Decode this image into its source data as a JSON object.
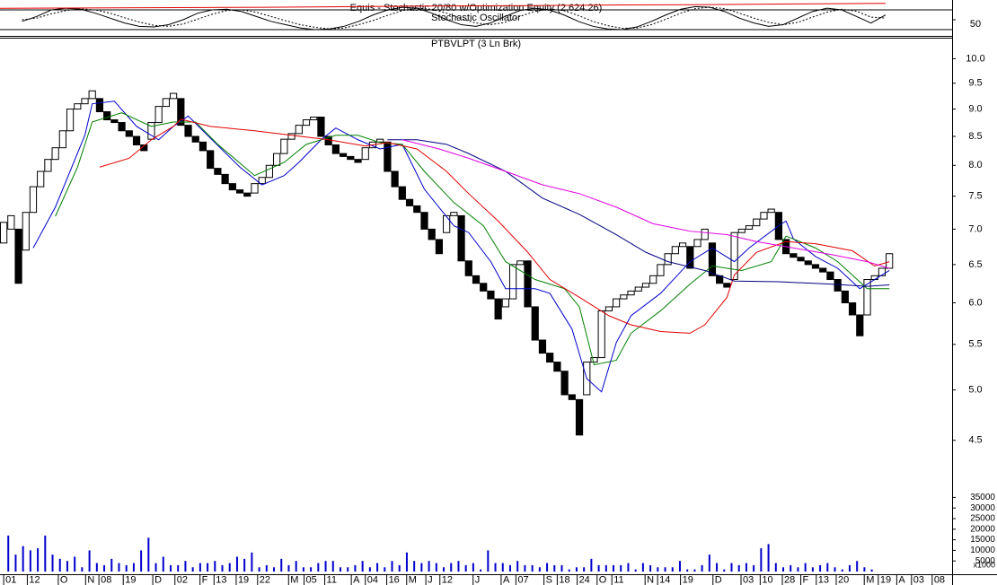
{
  "chart_data": {
    "type": "line_break",
    "top_title": "Equis - Stochastic 20/80 w/Optimization Equity (2,624.26)",
    "top_subtitle": "Stochastic Oscillator",
    "title": "PTBVLPT (3 Ln Brk)",
    "xlim": [
      0,
      129
    ],
    "x_labels": [
      {
        "label": "01",
        "at": 0.5
      },
      {
        "label": "12",
        "at": 3.7
      },
      {
        "label": "O",
        "at": 7.9
      },
      {
        "label": "N",
        "at": 11.6
      },
      {
        "label": "08",
        "at": 13.4
      },
      {
        "label": "19",
        "at": 16.7
      },
      {
        "label": "D",
        "at": 20.7
      },
      {
        "label": "02",
        "at": 23.7
      },
      {
        "label": "F",
        "at": 27.1
      },
      {
        "label": "13",
        "at": 29
      },
      {
        "label": "19",
        "at": 32
      },
      {
        "label": "22",
        "at": 34.9
      },
      {
        "label": "M",
        "at": 39.1
      },
      {
        "label": "05",
        "at": 41.2
      },
      {
        "label": "11",
        "at": 44
      },
      {
        "label": "A",
        "at": 47.6
      },
      {
        "label": "04",
        "at": 49.5
      },
      {
        "label": "16",
        "at": 52.4
      },
      {
        "label": "M",
        "at": 55.1
      },
      {
        "label": "J",
        "at": 57.7
      },
      {
        "label": "12",
        "at": 59.6
      },
      {
        "label": "J",
        "at": 64.1
      },
      {
        "label": "A",
        "at": 67.9
      },
      {
        "label": "07",
        "at": 69.9
      },
      {
        "label": "S",
        "at": 73.7
      },
      {
        "label": "18",
        "at": 75.5
      },
      {
        "label": "24",
        "at": 78.2
      },
      {
        "label": "O",
        "at": 80.9
      },
      {
        "label": "11",
        "at": 82.9
      },
      {
        "label": "N",
        "at": 87.4
      },
      {
        "label": "14",
        "at": 89.1
      },
      {
        "label": "19",
        "at": 92.2
      },
      {
        "label": "D",
        "at": 96.6
      },
      {
        "label": "03",
        "at": 100.4
      },
      {
        "label": "10",
        "at": 103
      },
      {
        "label": "28",
        "at": 106
      },
      {
        "label": "F",
        "at": 108.5
      },
      {
        "label": "13",
        "at": 110.6
      },
      {
        "label": "20",
        "at": 113.3
      },
      {
        "label": "M",
        "at": 117.1
      },
      {
        "label": "19",
        "at": 119
      },
      {
        "label": "A",
        "at": 121.5
      },
      {
        "label": "03",
        "at": 123.5
      },
      {
        "label": "08",
        "at": 126.3
      }
    ],
    "log_scale": true,
    "ylim": [
      3.4,
      10.45
    ],
    "yticks": [
      {
        "value": 10,
        "label": "10.0"
      },
      9.5,
      {
        "value": 9,
        "label": "9.0"
      },
      8.5,
      {
        "value": 8,
        "label": "8.0"
      },
      7.5,
      {
        "value": 7,
        "label": "7.0"
      },
      6.5,
      {
        "value": 6,
        "label": "6.0"
      },
      5.5,
      {
        "value": 5,
        "label": "5.0"
      },
      4.5
    ],
    "up_color": "#ffffff",
    "down_color": "#000000",
    "bricks": {
      "open": [
        6.8,
        7.0,
        7.0,
        6.7,
        7.25,
        7.65,
        7.9,
        8.1,
        8.3,
        8.6,
        9.0,
        9.1,
        9.2,
        9.2,
        8.95,
        8.8,
        8.75,
        8.6,
        8.5,
        8.35,
        8.45,
        8.75,
        9.05,
        9.2,
        9.2,
        8.7,
        8.5,
        8.4,
        8.25,
        7.95,
        7.85,
        7.7,
        7.6,
        7.55,
        7.55,
        7.7,
        7.8,
        8.0,
        8.2,
        8.45,
        8.55,
        8.7,
        8.8,
        8.85,
        8.5,
        8.35,
        8.2,
        8.15,
        8.1,
        8.1,
        8.3,
        8.4,
        8.4,
        7.9,
        7.65,
        7.45,
        7.35,
        7.25,
        7.0,
        6.85,
        6.95,
        7.2,
        7.2,
        6.55,
        6.35,
        6.25,
        6.15,
        6.05,
        5.95,
        6.05,
        6.5,
        6.55,
        5.95,
        5.55,
        5.4,
        5.3,
        5.2,
        4.95,
        4.9,
        4.95,
        5.3,
        5.35,
        5.9,
        5.95,
        6.05,
        6.1,
        6.15,
        6.2,
        6.25,
        6.35,
        6.5,
        6.65,
        6.75,
        6.75,
        6.75,
        6.85,
        6.8,
        6.35,
        6.25,
        6.3,
        6.95,
        7.0,
        7.05,
        7.15,
        7.25,
        7.25,
        6.85,
        6.65,
        6.6,
        6.55,
        6.5,
        6.45,
        6.4,
        6.3,
        6.15,
        6.0,
        5.85,
        5.85,
        6.3,
        6.35,
        6.45
      ],
      "close": [
        7.1,
        7.2,
        6.25,
        7.25,
        7.65,
        7.9,
        8.1,
        8.3,
        8.6,
        9.0,
        9.1,
        9.2,
        9.35,
        8.95,
        8.8,
        8.75,
        8.6,
        8.5,
        8.35,
        8.25,
        8.75,
        9.05,
        9.2,
        9.3,
        8.7,
        8.5,
        8.4,
        8.25,
        7.95,
        7.85,
        7.7,
        7.6,
        7.55,
        7.5,
        7.7,
        7.8,
        8.0,
        8.2,
        8.45,
        8.55,
        8.7,
        8.8,
        8.85,
        8.5,
        8.35,
        8.2,
        8.15,
        8.1,
        8.05,
        8.3,
        8.4,
        8.45,
        7.9,
        7.65,
        7.45,
        7.35,
        7.25,
        7.0,
        6.85,
        6.65,
        7.2,
        7.25,
        6.55,
        6.35,
        6.25,
        6.15,
        6.05,
        5.8,
        6.05,
        6.5,
        6.55,
        5.95,
        5.55,
        5.4,
        5.3,
        5.2,
        4.95,
        4.9,
        4.55,
        5.3,
        5.35,
        5.9,
        5.95,
        6.05,
        6.1,
        6.15,
        6.2,
        6.25,
        6.35,
        6.5,
        6.65,
        6.75,
        6.8,
        6.45,
        6.85,
        7.0,
        6.35,
        6.25,
        6.2,
        6.95,
        7.0,
        7.05,
        7.15,
        7.25,
        7.3,
        6.85,
        6.65,
        6.6,
        6.55,
        6.5,
        6.45,
        6.4,
        6.3,
        6.15,
        6.0,
        5.85,
        5.6,
        6.3,
        6.35,
        6.45,
        6.65
      ]
    },
    "lines": [
      {
        "color": "#0000cc",
        "x": [
          4,
          7,
          11,
          12,
          15,
          18,
          21,
          23,
          25,
          27,
          32,
          35,
          38,
          40,
          43,
          45,
          48,
          51,
          54,
          57,
          61,
          63,
          66,
          68,
          72,
          74,
          77,
          79,
          81,
          83,
          85,
          89,
          93,
          96,
          99,
          101,
          105,
          106,
          107,
          110,
          113,
          116,
          118,
          120
        ],
        "values": [
          6.73,
          7.33,
          8.52,
          9.1,
          9.15,
          8.68,
          8.44,
          8.68,
          8.87,
          8.6,
          7.97,
          7.68,
          7.83,
          8.05,
          8.44,
          8.65,
          8.44,
          8.28,
          8.36,
          7.61,
          7.05,
          6.95,
          6.54,
          6.18,
          6.18,
          6.12,
          5.68,
          5.12,
          4.98,
          5.52,
          5.84,
          6.12,
          6.54,
          6.73,
          6.54,
          6.73,
          7.05,
          7.12,
          6.86,
          6.61,
          6.45,
          6.18,
          6.3,
          6.42
        ]
      },
      {
        "color": "#008000",
        "x": [
          7,
          10,
          12,
          16,
          20,
          23,
          26,
          29,
          34,
          38,
          41,
          45,
          48,
          51,
          54,
          57,
          61,
          65,
          68,
          72,
          76,
          78,
          80,
          83,
          85,
          89,
          93,
          96,
          100,
          104,
          106,
          110,
          113,
          117,
          120
        ],
        "values": [
          7.19,
          7.97,
          8.76,
          8.93,
          8.68,
          8.76,
          8.76,
          8.36,
          7.83,
          8.05,
          8.36,
          8.52,
          8.52,
          8.39,
          8.36,
          7.9,
          7.4,
          7.05,
          6.54,
          6.3,
          6.18,
          5.95,
          5.27,
          5.32,
          5.63,
          5.9,
          6.24,
          6.48,
          6.42,
          6.54,
          6.9,
          6.73,
          6.54,
          6.18,
          6.18
        ]
      },
      {
        "color": "#e00000",
        "x": [
          13,
          17,
          20,
          23,
          24,
          28,
          34,
          39,
          44,
          49,
          52,
          56,
          60,
          63,
          67,
          71,
          74,
          78,
          82,
          85,
          89,
          93,
          95,
          98,
          99,
          102,
          106,
          110,
          115,
          118,
          120
        ],
        "values": [
          7.97,
          8.12,
          8.44,
          8.68,
          8.81,
          8.68,
          8.6,
          8.52,
          8.44,
          8.33,
          8.39,
          8.28,
          7.9,
          7.54,
          7.12,
          6.67,
          6.3,
          6.07,
          5.84,
          5.73,
          5.65,
          5.63,
          5.73,
          6.07,
          6.36,
          6.67,
          6.82,
          6.79,
          6.69,
          6.48,
          6.54
        ]
      },
      {
        "color": "#000080",
        "x": [
          52,
          56,
          60,
          63,
          68,
          73,
          78,
          83,
          87,
          90,
          95,
          99,
          105,
          112,
          117,
          120
        ],
        "values": [
          8.44,
          8.44,
          8.36,
          8.2,
          7.9,
          7.47,
          7.22,
          6.92,
          6.67,
          6.54,
          6.42,
          6.28,
          6.27,
          6.24,
          6.21,
          6.23
        ]
      },
      {
        "color": "#e000e0",
        "x": [
          54,
          59,
          63,
          68,
          73,
          78,
          83,
          88,
          93,
          98,
          102,
          107,
          112,
          117,
          120
        ],
        "values": [
          8.44,
          8.28,
          8.12,
          7.9,
          7.68,
          7.54,
          7.33,
          7.08,
          6.97,
          6.92,
          6.82,
          6.73,
          6.64,
          6.54,
          6.45
        ]
      }
    ],
    "volume": {
      "color": "#0000cc",
      "unit_label": "x1000",
      "ylim": [
        0,
        50000
      ],
      "yticks": [
        35000,
        30000,
        25000,
        20000,
        15000,
        10000,
        5000
      ],
      "values": [
        17000,
        8000,
        12000,
        10000,
        11000,
        17000,
        8000,
        6000,
        5000,
        7000,
        2000,
        10000,
        4000,
        3000,
        6000,
        4000,
        3000,
        4000,
        10000,
        16000,
        4000,
        7000,
        3000,
        3000,
        5000,
        2000,
        4000,
        4000,
        5000,
        3000,
        4000,
        7000,
        6000,
        9000,
        2000,
        3000,
        2000,
        6000,
        3000,
        5000,
        2000,
        2000,
        4000,
        5000,
        5000,
        2000,
        2000,
        3000,
        5000,
        2000,
        4000,
        2000,
        5000,
        3000,
        9000,
        5000,
        4000,
        5000,
        4000,
        2000,
        4000,
        5000,
        3000,
        4000,
        1000,
        10000,
        4000,
        4000,
        3000,
        5000,
        3000,
        3000,
        2000,
        4000,
        3000,
        3000,
        1000,
        2000,
        2000,
        6000,
        3000,
        3000,
        3000,
        3000,
        4000,
        1000,
        4000,
        3000,
        2000,
        2000,
        2000,
        5000,
        1000,
        1000,
        3000,
        8000,
        4000,
        1000,
        4000,
        3000,
        4000,
        3000,
        11000,
        13000,
        4000,
        2000,
        3000,
        2000,
        4000,
        2000,
        3000,
        4000,
        2000,
        1000,
        3000,
        5000,
        2000,
        1000
      ]
    },
    "stochastic": {
      "ylim": [
        0,
        100
      ],
      "yticks": [
        50
      ],
      "levels": [
        80,
        20
      ],
      "k_color": "#000000",
      "d_color": "#000000",
      "equity_color": "#e00000",
      "k": [
        45,
        60,
        80,
        85,
        82,
        70,
        55,
        40,
        30,
        28,
        35,
        50,
        70,
        80,
        82,
        75,
        60,
        45,
        35,
        25,
        20,
        22,
        30,
        45,
        65,
        80,
        88,
        85,
        70,
        50,
        35,
        30,
        40,
        60,
        78,
        85,
        80,
        65,
        45,
        30,
        22,
        20,
        28,
        45,
        65,
        82,
        90,
        88,
        75,
        55,
        40,
        30,
        35,
        55,
        75,
        85,
        80,
        60,
        40,
        65
      ],
      "d": [
        50,
        55,
        68,
        78,
        83,
        80,
        70,
        56,
        43,
        33,
        30,
        37,
        52,
        67,
        78,
        80,
        73,
        60,
        47,
        35,
        27,
        22,
        25,
        35,
        48,
        64,
        78,
        85,
        82,
        70,
        53,
        40,
        35,
        42,
        60,
        75,
        83,
        78,
        63,
        45,
        32,
        24,
        25,
        35,
        52,
        70,
        84,
        88,
        84,
        70,
        55,
        42,
        35,
        42,
        58,
        73,
        82,
        76,
        58,
        55
      ],
      "equity": [
        85,
        86,
        87,
        88,
        90,
        92,
        93,
        95,
        96,
        98,
        100
      ]
    }
  }
}
